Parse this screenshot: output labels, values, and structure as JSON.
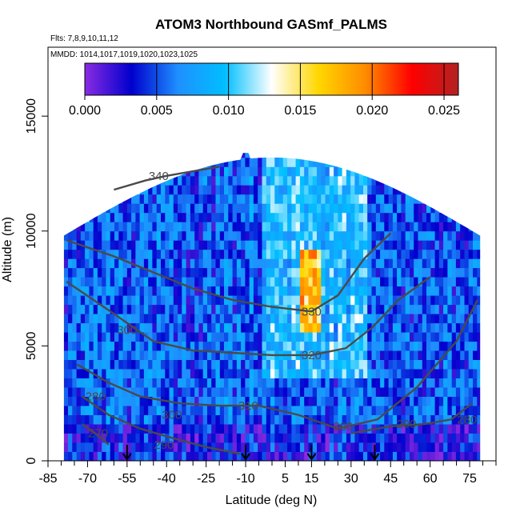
{
  "chart_data": {
    "type": "heatmap",
    "title": "ATOM3 Northbound GASmf_PALMS",
    "subtitle_flights": "Flts: 7,8,9,10,11,12",
    "subtitle_dates": "MMDD: 1014,1017,1019,1020,1023,1025",
    "xlabel": "Latitude (deg N)",
    "ylabel": "Altitude (m)",
    "xlim": [
      -85,
      85
    ],
    "ylim": [
      0,
      18000
    ],
    "x_ticks": [
      -85,
      -70,
      -55,
      -40,
      -25,
      -10,
      5,
      15,
      30,
      45,
      60,
      75
    ],
    "x_ticks_minor": [
      -80,
      -75,
      -65,
      -60,
      -50,
      -45,
      -35,
      -30,
      -20,
      -15,
      -5,
      0,
      10,
      20,
      25,
      35,
      40,
      50,
      55,
      65,
      70,
      80,
      85
    ],
    "y_ticks": [
      0,
      5000,
      10000,
      15000
    ],
    "colorbar": {
      "min": 0,
      "max": 0.026,
      "ticks": [
        0.0,
        0.005,
        0.01,
        0.015,
        0.02,
        0.025
      ],
      "tick_labels": [
        "0.000",
        "0.005",
        "0.010",
        "0.015",
        "0.020",
        "0.025"
      ],
      "colors": [
        "#8a2be2",
        "#0000cd",
        "#1e90ff",
        "#00bfff",
        "#ffffff",
        "#ffd700",
        "#ff8c00",
        "#ff0000",
        "#b22222"
      ]
    },
    "contour_labels": [
      {
        "text": "340",
        "lat": -43,
        "alt": 12400
      },
      {
        "text": "330",
        "lat": 15,
        "alt": 6500
      },
      {
        "text": "320",
        "lat": 15,
        "alt": 4600
      },
      {
        "text": "310",
        "lat": -9,
        "alt": 2400
      },
      {
        "text": "300",
        "lat": -38,
        "alt": 2000
      },
      {
        "text": "300",
        "lat": -55,
        "alt": 5700
      },
      {
        "text": "300",
        "lat": 27,
        "alt": 1500
      },
      {
        "text": "290",
        "lat": -41,
        "alt": 700
      },
      {
        "text": "290",
        "lat": 51,
        "alt": 1600
      },
      {
        "text": "280",
        "lat": -67,
        "alt": 2800
      },
      {
        "text": "280",
        "lat": 74,
        "alt": 1800
      },
      {
        "text": "270",
        "lat": -66,
        "alt": 1200
      }
    ],
    "profile_markers_lat": [
      -55,
      -10,
      15,
      39
    ],
    "grid": false,
    "legend": "colorbar top, inside plot"
  }
}
